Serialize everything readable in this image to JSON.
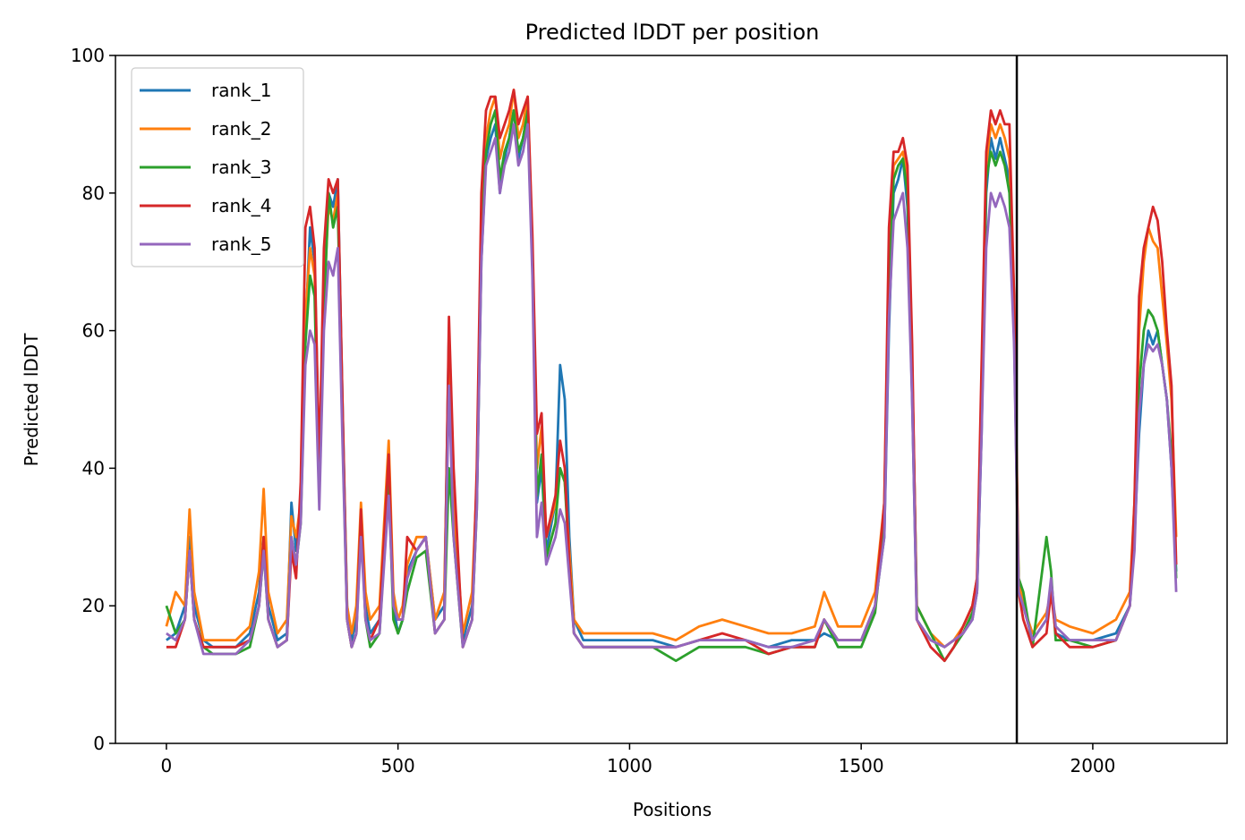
{
  "chart_data": {
    "type": "line",
    "title": "Predicted lDDT per position",
    "xlabel": "Positions",
    "ylabel": "Predicted lDDT",
    "xlim": [
      -110,
      2290
    ],
    "ylim": [
      0,
      100
    ],
    "xticks": [
      0,
      500,
      1000,
      1500,
      2000
    ],
    "yticks": [
      0,
      20,
      40,
      60,
      80,
      100
    ],
    "x_tick_labels": [
      "0",
      "500",
      "1000",
      "1500",
      "2000"
    ],
    "y_tick_labels": [
      "0",
      "20",
      "40",
      "60",
      "80",
      "100"
    ],
    "grid": false,
    "legend_position": "top-left",
    "chain_break_x": 1836,
    "x": [
      0,
      20,
      40,
      50,
      60,
      80,
      100,
      150,
      180,
      200,
      210,
      220,
      240,
      260,
      270,
      280,
      290,
      300,
      310,
      320,
      330,
      340,
      350,
      360,
      370,
      380,
      390,
      400,
      410,
      420,
      430,
      440,
      460,
      480,
      490,
      500,
      510,
      520,
      540,
      560,
      580,
      600,
      610,
      620,
      640,
      660,
      670,
      680,
      690,
      700,
      710,
      720,
      730,
      740,
      750,
      760,
      770,
      780,
      790,
      800,
      810,
      820,
      840,
      850,
      860,
      870,
      880,
      900,
      950,
      1000,
      1050,
      1100,
      1150,
      1200,
      1250,
      1300,
      1350,
      1400,
      1420,
      1450,
      1500,
      1530,
      1550,
      1560,
      1570,
      1580,
      1590,
      1600,
      1610,
      1620,
      1650,
      1680,
      1700,
      1720,
      1740,
      1750,
      1760,
      1770,
      1780,
      1790,
      1800,
      1810,
      1820,
      1830,
      1840,
      1850,
      1870,
      1900,
      1910,
      1920,
      1950,
      2000,
      2050,
      2080,
      2090,
      2100,
      2110,
      2120,
      2130,
      2140,
      2150,
      2160,
      2170,
      2180
    ],
    "series": [
      {
        "name": "rank_1",
        "color": "#1f77b4",
        "values": [
          15,
          16,
          20,
          30,
          20,
          15,
          14,
          14,
          16,
          22,
          30,
          20,
          15,
          16,
          35,
          28,
          35,
          60,
          75,
          70,
          40,
          65,
          80,
          78,
          82,
          50,
          20,
          15,
          18,
          34,
          20,
          16,
          18,
          40,
          20,
          16,
          18,
          25,
          28,
          30,
          18,
          20,
          60,
          35,
          15,
          20,
          35,
          70,
          85,
          88,
          90,
          80,
          85,
          88,
          92,
          85,
          88,
          92,
          70,
          35,
          40,
          28,
          35,
          55,
          50,
          30,
          18,
          15,
          15,
          15,
          15,
          14,
          15,
          15,
          15,
          14,
          15,
          15,
          16,
          15,
          15,
          20,
          30,
          60,
          80,
          82,
          85,
          78,
          50,
          18,
          15,
          14,
          15,
          16,
          18,
          22,
          45,
          80,
          88,
          85,
          88,
          85,
          82,
          60,
          22,
          20,
          15,
          18,
          23,
          16,
          15,
          15,
          16,
          20,
          30,
          45,
          55,
          60,
          58,
          60,
          55,
          50,
          40,
          25
        ]
      },
      {
        "name": "rank_2",
        "color": "#ff7f0e",
        "values": [
          17,
          22,
          20,
          34,
          22,
          15,
          15,
          15,
          17,
          25,
          37,
          22,
          16,
          18,
          33,
          30,
          35,
          62,
          72,
          68,
          38,
          65,
          78,
          76,
          80,
          48,
          20,
          16,
          20,
          35,
          22,
          18,
          20,
          44,
          22,
          18,
          20,
          26,
          30,
          30,
          18,
          22,
          55,
          35,
          16,
          22,
          38,
          75,
          88,
          92,
          94,
          85,
          88,
          90,
          95,
          88,
          90,
          94,
          72,
          40,
          46,
          30,
          35,
          40,
          38,
          28,
          18,
          16,
          16,
          16,
          16,
          15,
          17,
          18,
          17,
          16,
          16,
          17,
          22,
          17,
          17,
          22,
          35,
          70,
          84,
          85,
          86,
          82,
          55,
          20,
          16,
          14,
          15,
          17,
          20,
          24,
          50,
          84,
          90,
          88,
          90,
          88,
          85,
          65,
          24,
          20,
          16,
          19,
          22,
          18,
          17,
          16,
          18,
          22,
          35,
          60,
          70,
          75,
          73,
          72,
          65,
          58,
          50,
          30
        ]
      },
      {
        "name": "rank_3",
        "color": "#2ca02c",
        "values": [
          20,
          16,
          18,
          28,
          18,
          14,
          13,
          13,
          14,
          20,
          28,
          18,
          14,
          15,
          30,
          26,
          32,
          58,
          68,
          65,
          36,
          62,
          80,
          75,
          78,
          46,
          18,
          14,
          16,
          32,
          18,
          14,
          16,
          38,
          18,
          16,
          18,
          22,
          27,
          28,
          16,
          18,
          40,
          30,
          14,
          18,
          34,
          72,
          86,
          90,
          92,
          82,
          86,
          88,
          92,
          86,
          88,
          92,
          70,
          36,
          42,
          27,
          32,
          40,
          38,
          26,
          16,
          14,
          14,
          14,
          14,
          12,
          14,
          14,
          14,
          13,
          14,
          14,
          18,
          14,
          14,
          19,
          32,
          65,
          82,
          84,
          85,
          80,
          55,
          20,
          16,
          12,
          14,
          16,
          19,
          22,
          48,
          82,
          86,
          84,
          86,
          84,
          80,
          60,
          24,
          22,
          14,
          30,
          25,
          15,
          15,
          14,
          15,
          20,
          30,
          52,
          60,
          63,
          62,
          60,
          55,
          50,
          42,
          24
        ]
      },
      {
        "name": "rank_4",
        "color": "#d62728",
        "values": [
          14,
          14,
          18,
          28,
          18,
          14,
          14,
          14,
          15,
          20,
          30,
          18,
          14,
          15,
          28,
          24,
          38,
          75,
          78,
          72,
          40,
          72,
          82,
          80,
          82,
          50,
          18,
          14,
          16,
          34,
          18,
          15,
          18,
          42,
          20,
          18,
          18,
          30,
          28,
          30,
          16,
          18,
          62,
          40,
          14,
          18,
          40,
          80,
          92,
          94,
          94,
          88,
          90,
          92,
          95,
          90,
          92,
          94,
          74,
          45,
          48,
          30,
          36,
          44,
          40,
          26,
          16,
          14,
          14,
          14,
          14,
          14,
          15,
          16,
          15,
          13,
          14,
          14,
          18,
          15,
          15,
          20,
          35,
          75,
          86,
          86,
          88,
          84,
          58,
          18,
          14,
          12,
          14,
          17,
          20,
          24,
          55,
          86,
          92,
          90,
          92,
          90,
          90,
          65,
          22,
          18,
          14,
          16,
          22,
          16,
          14,
          14,
          15,
          20,
          35,
          65,
          72,
          75,
          78,
          76,
          70,
          60,
          52,
          26
        ]
      },
      {
        "name": "rank_5",
        "color": "#9467bd",
        "values": [
          16,
          15,
          18,
          28,
          18,
          13,
          13,
          13,
          15,
          20,
          28,
          18,
          14,
          15,
          30,
          26,
          32,
          55,
          60,
          58,
          34,
          60,
          70,
          68,
          72,
          44,
          18,
          14,
          16,
          30,
          18,
          15,
          16,
          36,
          20,
          18,
          18,
          24,
          28,
          30,
          16,
          18,
          52,
          30,
          14,
          18,
          34,
          70,
          84,
          86,
          88,
          80,
          84,
          86,
          90,
          84,
          86,
          90,
          68,
          30,
          35,
          26,
          30,
          34,
          32,
          24,
          16,
          14,
          14,
          14,
          14,
          14,
          15,
          15,
          15,
          14,
          14,
          15,
          18,
          15,
          15,
          20,
          30,
          62,
          76,
          78,
          80,
          72,
          50,
          18,
          15,
          14,
          15,
          16,
          18,
          22,
          45,
          72,
          80,
          78,
          80,
          78,
          75,
          58,
          22,
          20,
          15,
          18,
          24,
          17,
          15,
          15,
          15,
          20,
          28,
          48,
          55,
          58,
          57,
          58,
          55,
          50,
          40,
          22
        ]
      }
    ]
  }
}
